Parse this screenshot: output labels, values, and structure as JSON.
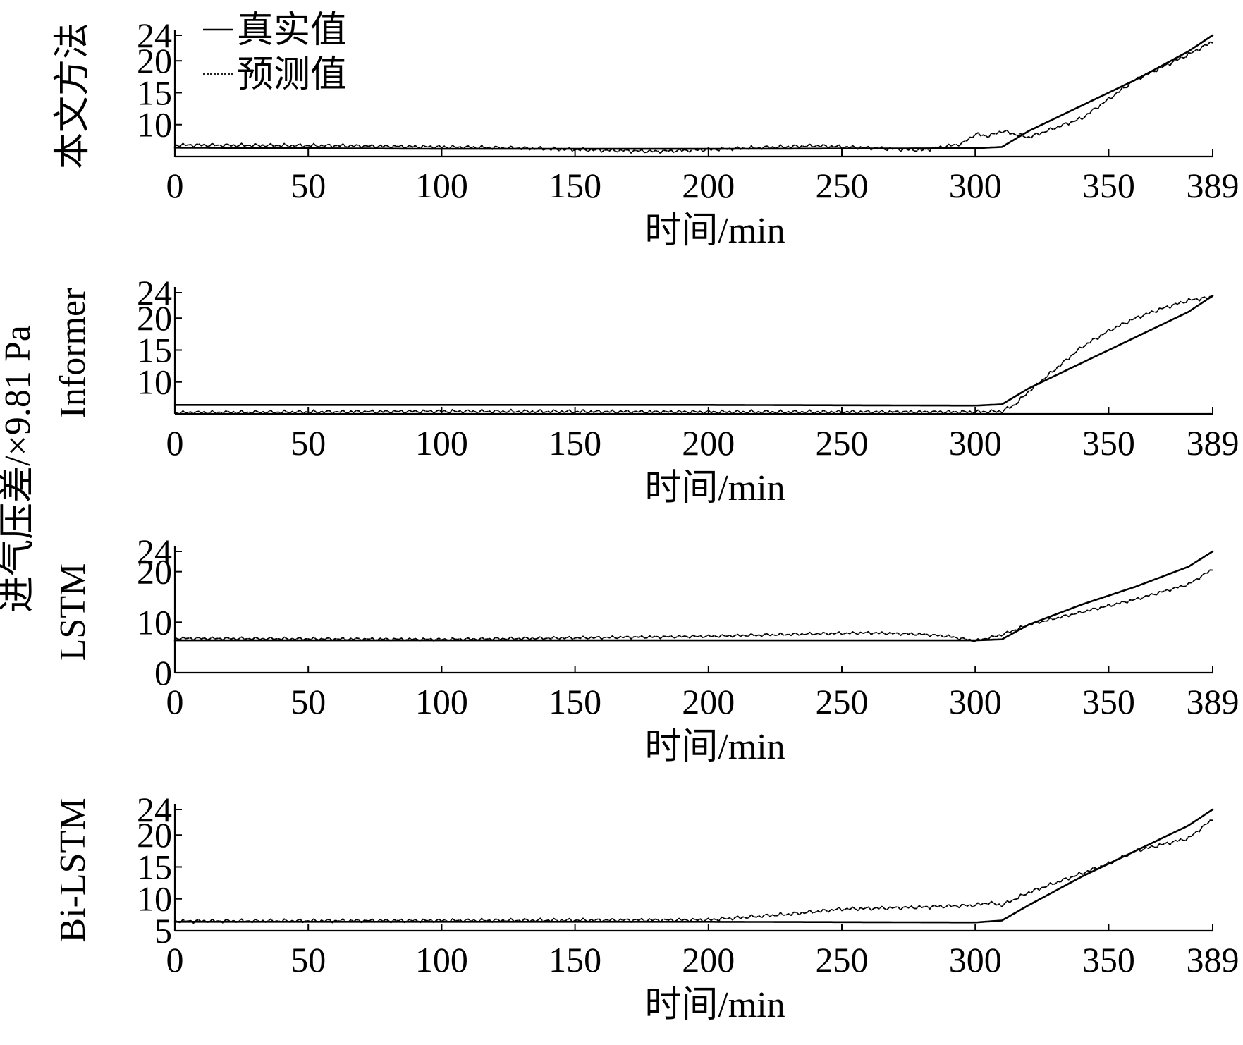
{
  "figure": {
    "shared_ylabel": "进气压差/×9.81 Pa",
    "legend": {
      "actual": "真实值",
      "predicted": "预测值"
    }
  },
  "chart_data": [
    {
      "type": "line",
      "panel_label": "本文方法",
      "xlabel": "时间/min",
      "xlim": [
        0,
        389
      ],
      "ylim": [
        5,
        24
      ],
      "xticks": [
        0,
        50,
        100,
        150,
        200,
        250,
        300,
        350,
        389
      ],
      "yticks": [
        10,
        15,
        20,
        24
      ],
      "series": [
        {
          "name": "真实值",
          "style": "solid",
          "x": [
            0,
            100,
            200,
            300,
            310,
            320,
            340,
            360,
            380,
            389
          ],
          "values": [
            6.4,
            6.2,
            6.2,
            6.3,
            6.5,
            9.0,
            13.0,
            17.0,
            21.5,
            24.0
          ]
        },
        {
          "name": "预测值",
          "style": "dashed",
          "x": [
            0,
            60,
            120,
            180,
            240,
            280,
            295,
            300,
            305,
            310,
            320,
            330,
            340,
            350,
            360,
            370,
            380,
            389
          ],
          "values": [
            6.8,
            6.7,
            6.4,
            5.8,
            6.7,
            6.0,
            7.0,
            8.5,
            8.2,
            9.0,
            8.0,
            9.5,
            11.0,
            14.0,
            17.0,
            19.0,
            21.0,
            23.0
          ]
        }
      ]
    },
    {
      "type": "line",
      "panel_label": "Informer",
      "xlabel": "时间/min",
      "xlim": [
        0,
        389
      ],
      "ylim": [
        5,
        24
      ],
      "xticks": [
        0,
        50,
        100,
        150,
        200,
        250,
        300,
        350,
        389
      ],
      "yticks": [
        10,
        15,
        20,
        24
      ],
      "series": [
        {
          "name": "真实值",
          "style": "solid",
          "x": [
            0,
            100,
            200,
            300,
            310,
            320,
            330,
            340,
            350,
            360,
            370,
            380,
            389
          ],
          "values": [
            6.4,
            6.4,
            6.4,
            6.3,
            6.5,
            9.0,
            11.0,
            13.0,
            15.0,
            17.0,
            19.0,
            21.0,
            23.5
          ]
        },
        {
          "name": "预测值",
          "style": "dashed",
          "x": [
            0,
            100,
            200,
            300,
            310,
            315,
            320,
            330,
            340,
            350,
            360,
            370,
            380,
            389
          ],
          "values": [
            5.2,
            5.4,
            5.3,
            5.3,
            5.4,
            6.5,
            8.5,
            12.0,
            15.5,
            18.0,
            20.0,
            21.5,
            22.8,
            23.3
          ]
        }
      ]
    },
    {
      "type": "line",
      "panel_label": "LSTM",
      "xlabel": "时间/min",
      "xlim": [
        0,
        389
      ],
      "ylim": [
        0,
        24
      ],
      "xticks": [
        0,
        50,
        100,
        150,
        200,
        250,
        300,
        350,
        389
      ],
      "yticks": [
        0,
        10,
        20,
        24
      ],
      "series": [
        {
          "name": "真实值",
          "style": "solid",
          "x": [
            0,
            100,
            200,
            300,
            310,
            320,
            340,
            360,
            380,
            389
          ],
          "values": [
            6.4,
            6.4,
            6.4,
            6.4,
            6.6,
            9.5,
            13.5,
            17.0,
            21.0,
            24.0
          ]
        },
        {
          "name": "预测值",
          "style": "dashed",
          "x": [
            0,
            100,
            200,
            240,
            260,
            280,
            290,
            300,
            310,
            320,
            340,
            360,
            380,
            389
          ],
          "values": [
            6.8,
            6.6,
            7.2,
            7.7,
            7.9,
            7.6,
            7.2,
            6.3,
            7.5,
            9.5,
            12.0,
            14.5,
            17.5,
            20.5
          ]
        }
      ]
    },
    {
      "type": "line",
      "panel_label": "Bi-LSTM",
      "xlabel": "时间/min",
      "xlim": [
        0,
        389
      ],
      "ylim": [
        5,
        24
      ],
      "xticks": [
        0,
        50,
        100,
        150,
        200,
        250,
        300,
        350,
        389
      ],
      "yticks": [
        5,
        10,
        15,
        20,
        24
      ],
      "series": [
        {
          "name": "真实值",
          "style": "solid",
          "x": [
            0,
            100,
            200,
            300,
            310,
            320,
            340,
            360,
            380,
            389
          ],
          "values": [
            6.4,
            6.4,
            6.4,
            6.3,
            6.6,
            9.0,
            13.5,
            17.5,
            21.5,
            24.0
          ]
        },
        {
          "name": "预测值",
          "style": "dashed",
          "x": [
            0,
            100,
            200,
            230,
            250,
            280,
            300,
            305,
            310,
            320,
            340,
            350,
            360,
            380,
            389
          ],
          "values": [
            6.5,
            6.6,
            6.7,
            7.6,
            8.4,
            8.7,
            9.0,
            9.4,
            9.0,
            11.0,
            14.0,
            15.5,
            17.5,
            19.5,
            22.5
          ]
        }
      ]
    }
  ]
}
